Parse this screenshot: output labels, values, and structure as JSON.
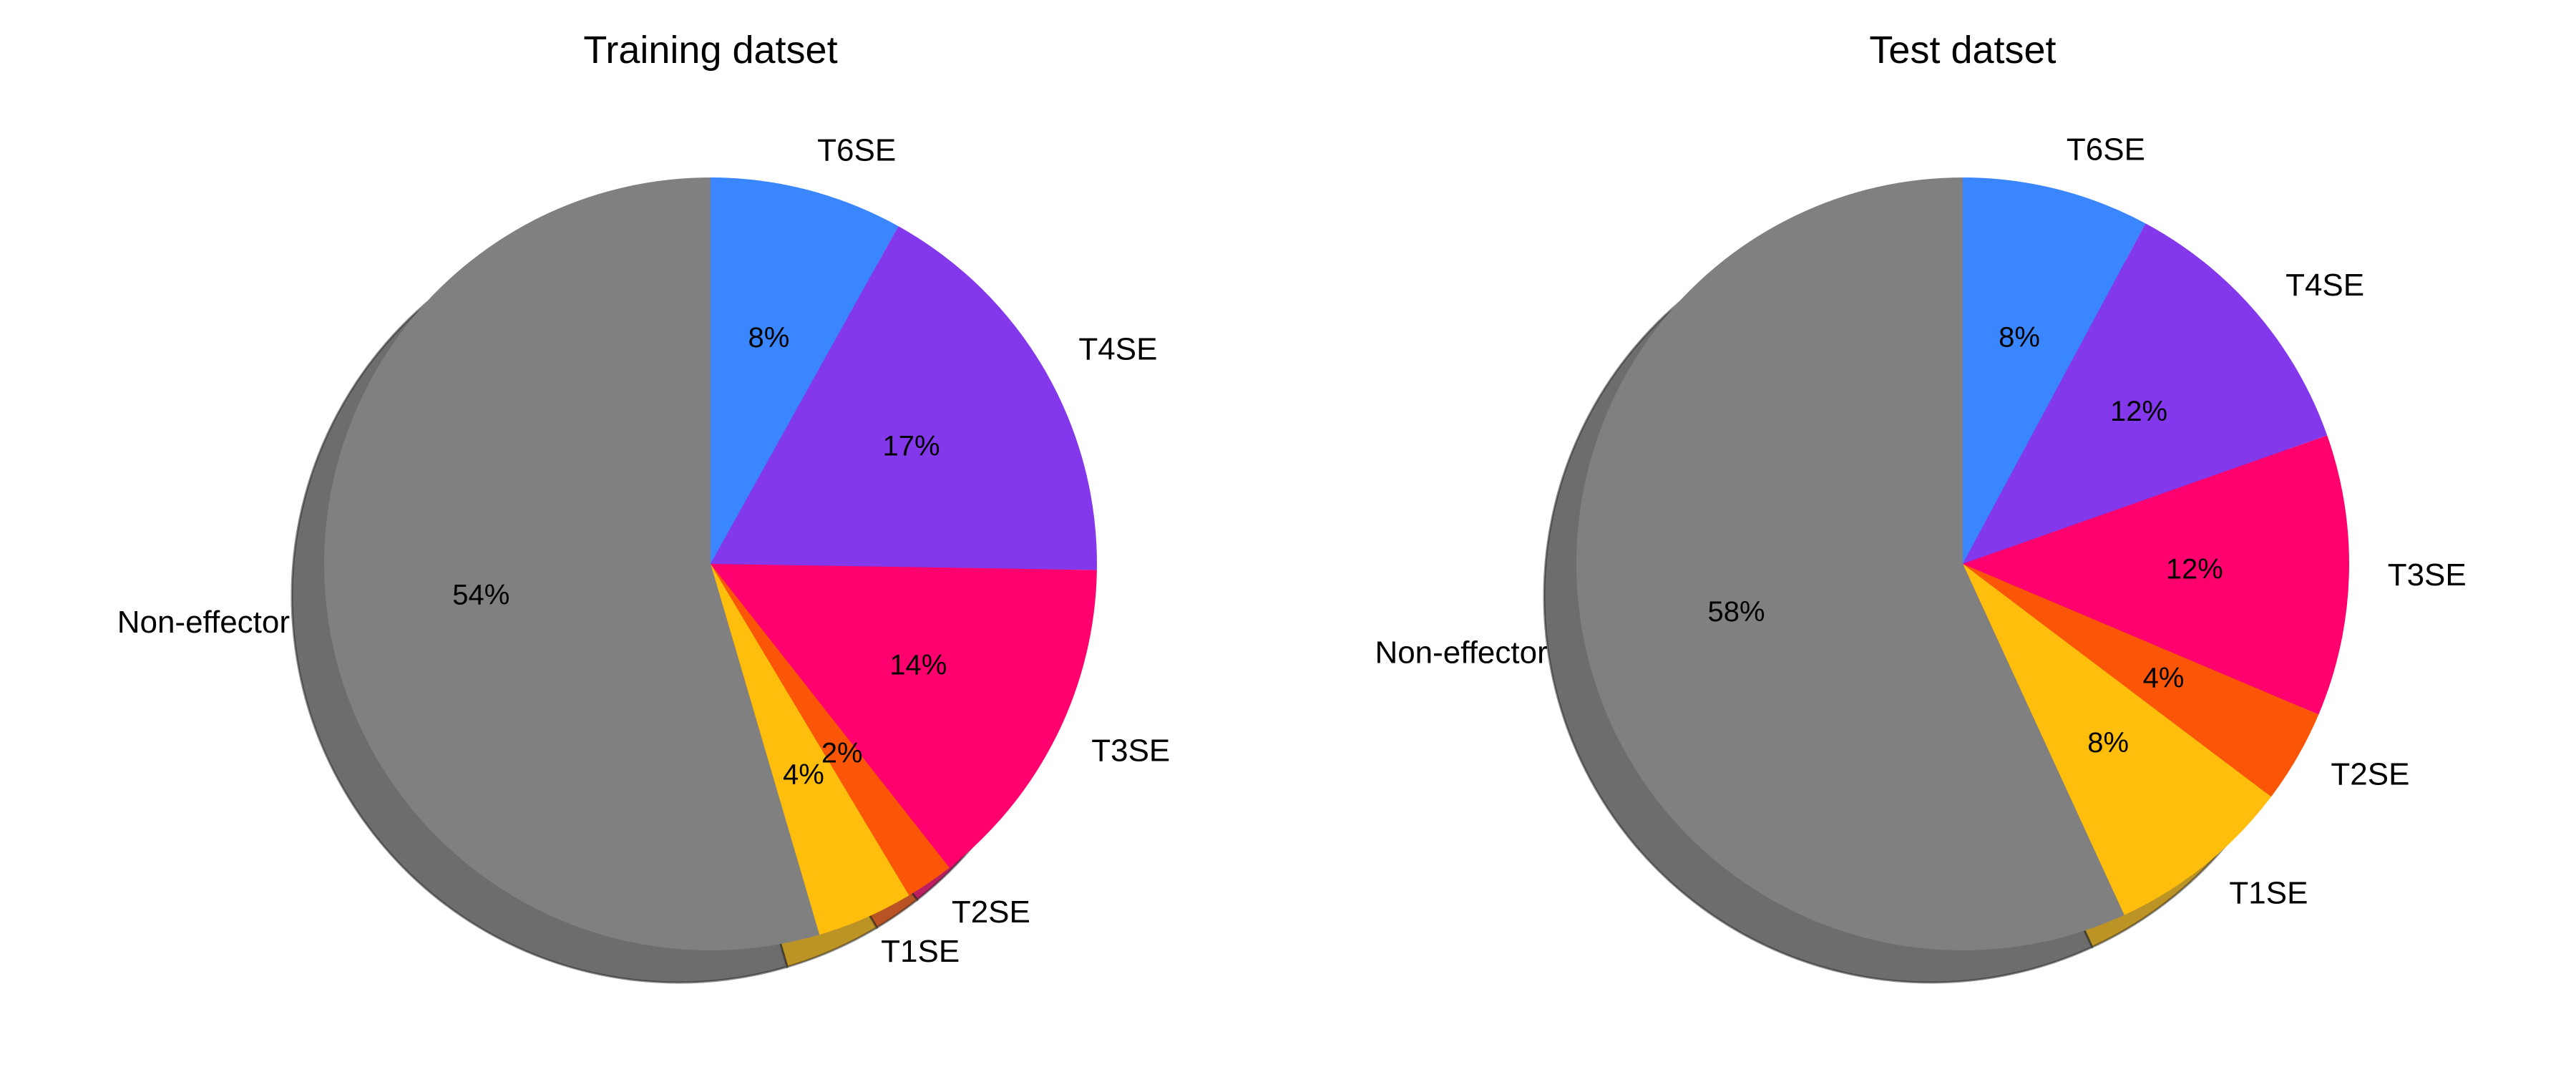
{
  "chart_data": [
    {
      "type": "pie",
      "title": "Training datset",
      "categories": [
        "T6SE",
        "T4SE",
        "T3SE",
        "T2SE",
        "T1SE",
        "Non-effector"
      ],
      "values": [
        8,
        17,
        14,
        2,
        4,
        54
      ],
      "value_labels": [
        "8%",
        "17%",
        "14%",
        "2%",
        "4%",
        "54%"
      ],
      "colors": [
        "#3a86ff",
        "#8338ec",
        "#ff006e",
        "#fb5607",
        "#ffbe0b",
        "#808080"
      ],
      "start_angle_deg": 90,
      "direction": "clockwise",
      "shadow": true
    },
    {
      "type": "pie",
      "title": "Test datset",
      "categories": [
        "T6SE",
        "T4SE",
        "T3SE",
        "T2SE",
        "T1SE",
        "Non-effector"
      ],
      "values": [
        8,
        12,
        12,
        4,
        8,
        58
      ],
      "value_labels": [
        "8%",
        "12%",
        "12%",
        "4%",
        "8%",
        "58%"
      ],
      "colors": [
        "#3a86ff",
        "#8338ec",
        "#ff006e",
        "#fb5607",
        "#ffbe0b",
        "#808080"
      ],
      "start_angle_deg": 90,
      "direction": "clockwise",
      "shadow": true
    }
  ]
}
